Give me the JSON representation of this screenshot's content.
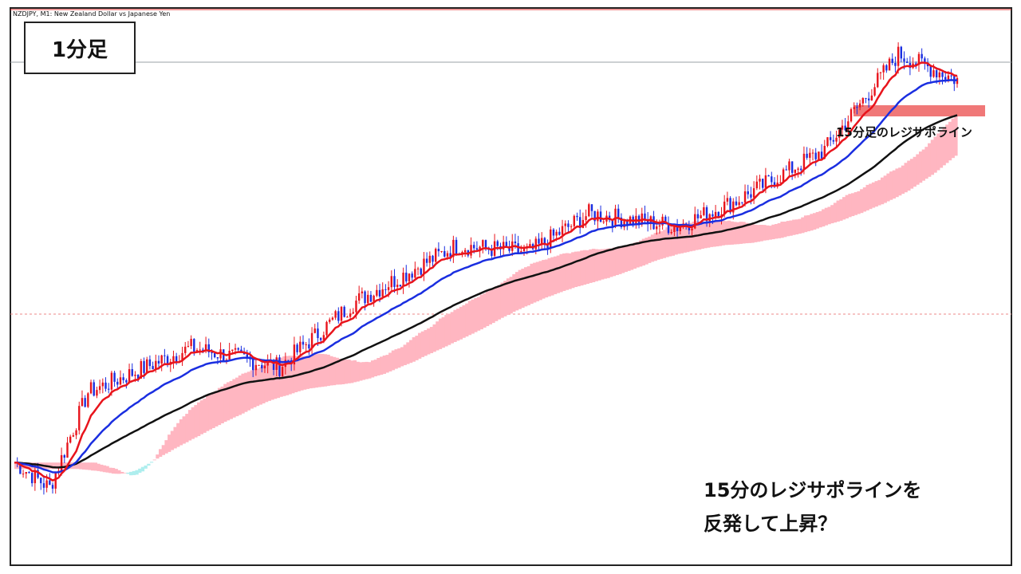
{
  "window": {
    "title": "NZDJPY, M1:  New Zealand Dollar vs Japanese Yen"
  },
  "timeframe_label": "1分足",
  "annotation": "15分足のレジサポライン",
  "caption": {
    "line1": "15分のレジサポラインを",
    "line2": "反発して上昇？"
  },
  "colors": {
    "bull": "#e8141c",
    "bear": "#1a2ee0",
    "ema_fast": "#e8141c",
    "ema_mid": "#1a2ee0",
    "ema_slow": "#111111",
    "cloud_bull": "#ffb6c1",
    "cloud_bear": "#aeeeee",
    "zone": "#f07878"
  },
  "chart_data": {
    "type": "candlestick",
    "title": "NZDJPY, M1:  New Zealand Dollar vs Japanese Yen",
    "ylim": [
      0,
      100
    ],
    "indicators": [
      "fast MA (red)",
      "mid MA (blue)",
      "slow MA (black)",
      "ichimoku cloud"
    ],
    "key_points": [
      {
        "x": 0,
        "close": 30
      },
      {
        "x": 12,
        "close": 22
      },
      {
        "x": 25,
        "close": 52
      },
      {
        "x": 40,
        "close": 58
      },
      {
        "x": 60,
        "close": 66
      },
      {
        "x": 90,
        "close": 60
      },
      {
        "x": 115,
        "close": 80
      },
      {
        "x": 150,
        "close": 98
      },
      {
        "x": 175,
        "close": 96
      },
      {
        "x": 195,
        "close": 108
      },
      {
        "x": 225,
        "close": 104
      },
      {
        "x": 245,
        "close": 112
      },
      {
        "x": 275,
        "close": 128
      },
      {
        "x": 300,
        "close": 158
      },
      {
        "x": 320,
        "close": 150
      }
    ],
    "resistance_support_zone": {
      "label": "15分足のレジサポライン",
      "level": 145
    }
  }
}
